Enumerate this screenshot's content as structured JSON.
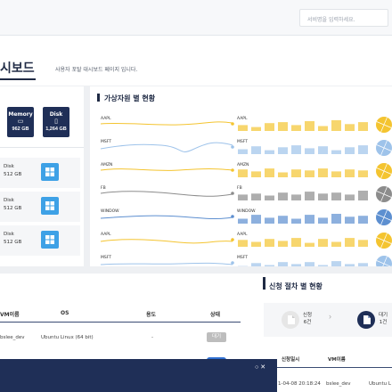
{
  "search": {
    "placeholder": "서비명을 입력하세요."
  },
  "page": {
    "title": "시보드",
    "description": "사용자 포탈 대시보드 페이지 입니다."
  },
  "resources": {
    "cards": [
      {
        "label": "Memory",
        "value": "962 GB",
        "icon": "memory-icon"
      },
      {
        "label": "Disk",
        "value": "1,264 GB",
        "icon": "disk-icon"
      }
    ],
    "disks": [
      {
        "name": "Disk",
        "size": "512 GB"
      },
      {
        "name": "Disk",
        "size": "512 GB"
      },
      {
        "name": "Disk",
        "size": "512 GB"
      }
    ]
  },
  "virtual_resources": {
    "title": "가상자원 별 현황",
    "rows": [
      {
        "name": "AAPL",
        "color": "#f4c430",
        "end": "AAPL"
      },
      {
        "name": "MSFT",
        "color": "#9ec3ea",
        "end": "MSFT"
      },
      {
        "name": "AMZN",
        "color": "#f4c430",
        "end": "AMZN"
      },
      {
        "name": "FB",
        "color": "#8c8c8c",
        "end": "FB"
      },
      {
        "name": "WINDOW",
        "color": "#5d8fd0",
        "end": "WINDOW"
      },
      {
        "name": "AAPL",
        "color": "#f4c430",
        "end": "AAPL"
      },
      {
        "name": "MSFT",
        "color": "#9ec3ea",
        "end": "MSFT"
      }
    ]
  },
  "vm_table": {
    "headers": [
      "VM이름",
      "OS",
      "용도",
      "상태"
    ],
    "rows": [
      {
        "name": "bslee_dev",
        "os": "Ubuntu Linux (64 bit)",
        "purpose": "-",
        "status": "대기"
      }
    ]
  },
  "requests": {
    "title": "신청 절차 별 현황",
    "steps": [
      {
        "label": "신청",
        "count": "6건"
      },
      {
        "label": "대기",
        "count": "1건"
      }
    ],
    "headers": [
      "신청일시",
      "VM이름"
    ],
    "rows": [
      {
        "date": "1-04-08 20:18:24",
        "vm": "bslee_dev",
        "extra": "Ubuntu L"
      }
    ]
  },
  "bottom_bar": {
    "icons": [
      "minimize-icon",
      "close-icon"
    ]
  }
}
